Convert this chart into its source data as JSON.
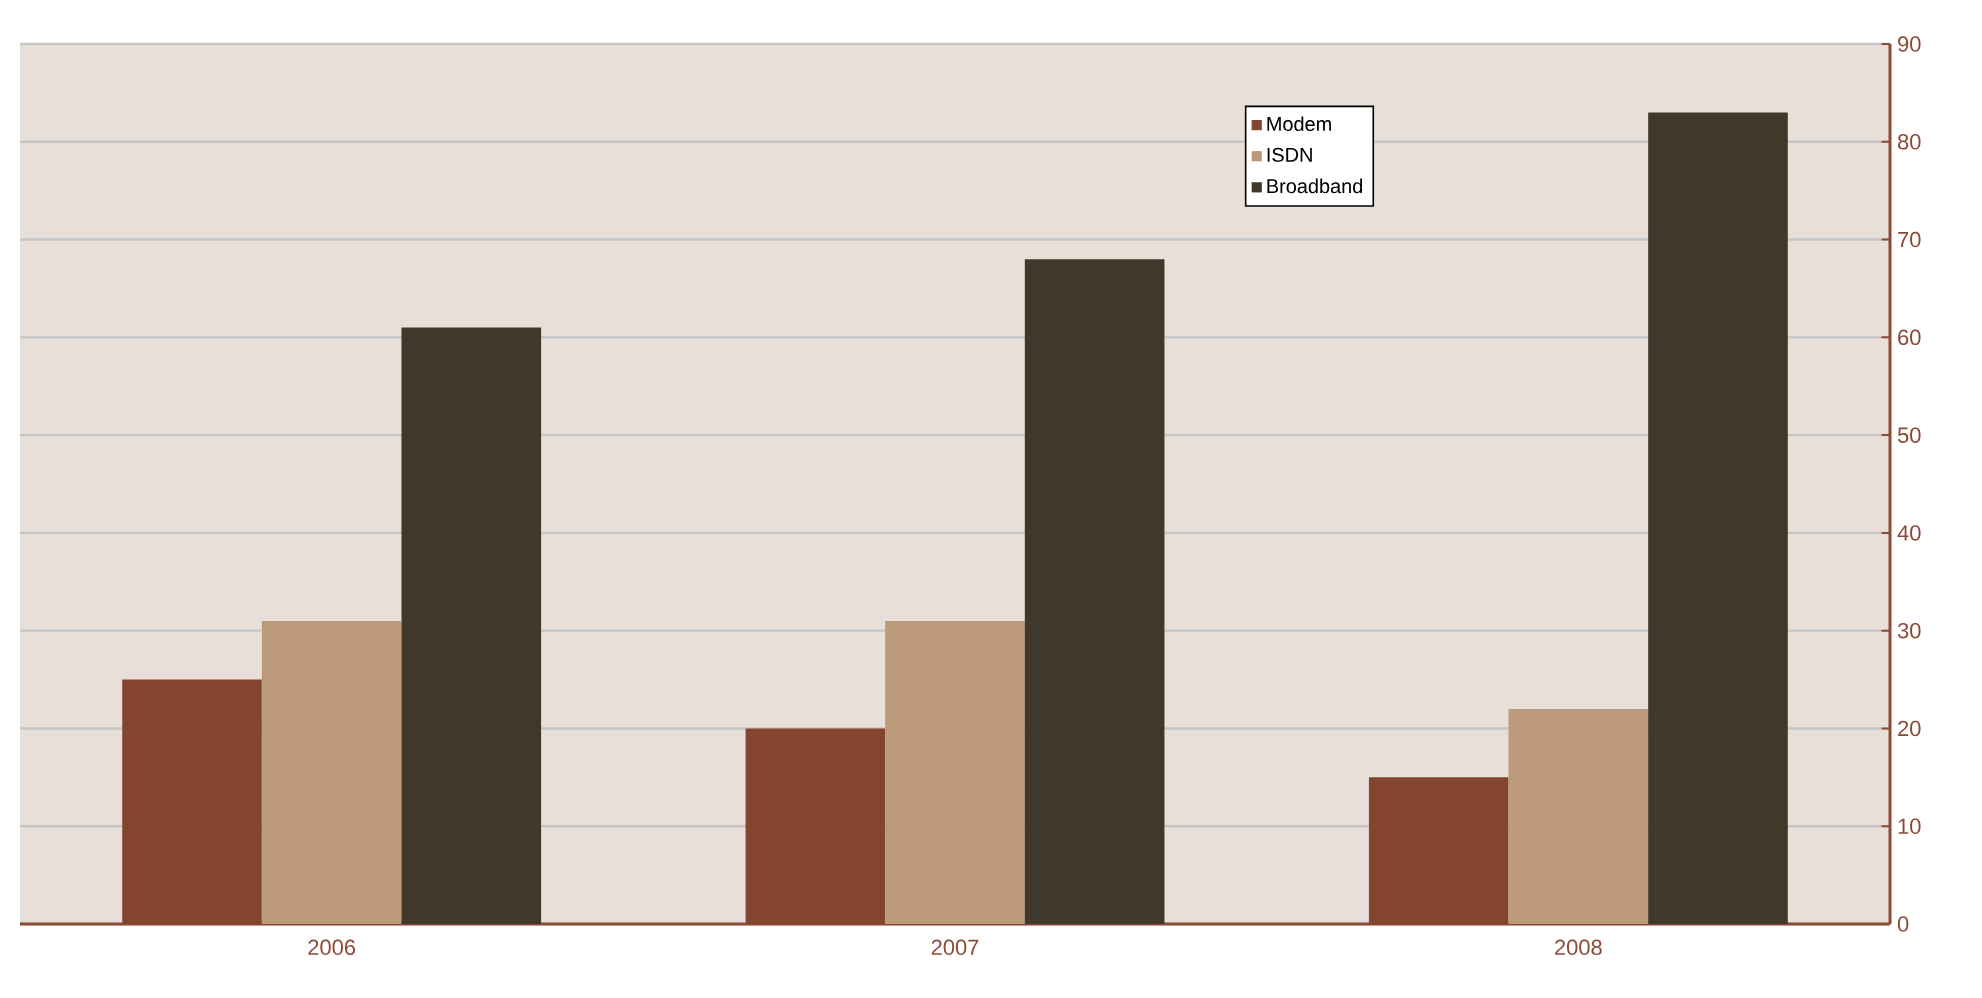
{
  "chart_data": {
    "type": "bar",
    "categories": [
      "2006",
      "2007",
      "2008"
    ],
    "series": [
      {
        "name": "Modem",
        "color": "#84452f",
        "values": [
          25,
          20,
          15
        ]
      },
      {
        "name": "ISDN",
        "color": "#bc9a7a",
        "values": [
          31,
          31,
          22
        ]
      },
      {
        "name": "Broadband",
        "color": "#40382a",
        "values": [
          61,
          68,
          83
        ]
      }
    ],
    "ylim": [
      0,
      90
    ],
    "yticks": [
      0,
      10,
      20,
      30,
      40,
      50,
      60,
      70,
      80,
      90
    ],
    "grid": "y",
    "legend": "top right"
  }
}
